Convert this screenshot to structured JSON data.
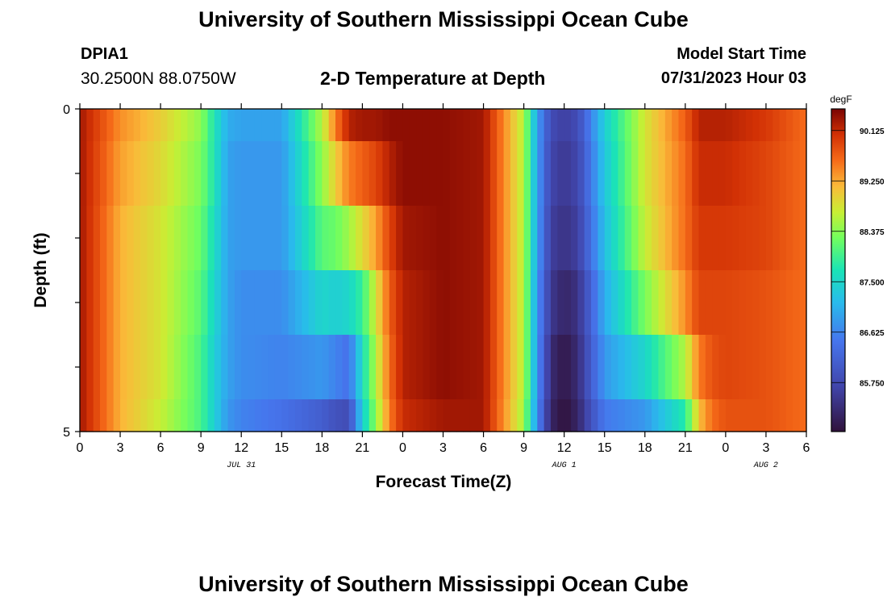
{
  "header": {
    "title": "University of Southern Mississippi Ocean Cube",
    "station_id": "DPIA1",
    "coordinates": "30.2500N  88.0750W",
    "subtitle": "2-D Temperature at Depth",
    "model_start_label": "Model Start Time",
    "model_start_value": "07/31/2023 Hour 03"
  },
  "footer": {
    "title": "University of Southern Mississippi Ocean Cube"
  },
  "chart_data": {
    "type": "heatmap",
    "title": "2-D Temperature at Depth",
    "xlabel": "Forecast Time(Z)",
    "ylabel": "Depth (ft)",
    "x_tick_labels": [
      "0",
      "3",
      "6",
      "9",
      "12",
      "15",
      "18",
      "21",
      "0",
      "3",
      "6",
      "9",
      "12",
      "15",
      "18",
      "21",
      "0",
      "3",
      "6"
    ],
    "x_hours": [
      0,
      54
    ],
    "date_labels": [
      {
        "label": "JUL 31",
        "hour": 12
      },
      {
        "label": "AUG 1",
        "hour": 36
      },
      {
        "label": "AUG 2",
        "hour": 51
      }
    ],
    "y_tick_labels": [
      "0",
      "5"
    ],
    "ylim": [
      0,
      5
    ],
    "colorbar": {
      "unit": "degF",
      "tick_labels": [
        "90.125",
        "89.250",
        "88.375",
        "87.500",
        "86.625",
        "85.750"
      ],
      "min": 84.9,
      "max": 90.5
    },
    "depth_rows": [
      0,
      0.5,
      1.5,
      2.5,
      3.5,
      4.5
    ],
    "time_hours": [
      0,
      3,
      6,
      9,
      10,
      11,
      12,
      15,
      18,
      19,
      20,
      21,
      22,
      23,
      24,
      27,
      30,
      33,
      34,
      35,
      36,
      37,
      38,
      39,
      42,
      45,
      46,
      47,
      48,
      51,
      54
    ],
    "temperatures": [
      [
        90.3,
        89.4,
        89.0,
        88.4,
        87.7,
        87.0,
        86.9,
        86.9,
        88.6,
        89.5,
        90.2,
        90.3,
        90.3,
        90.4,
        90.4,
        90.4,
        90.3,
        88.6,
        86.9,
        85.8,
        85.6,
        85.8,
        86.6,
        87.4,
        88.8,
        89.7,
        90.2,
        90.2,
        90.2,
        90.0,
        89.6
      ],
      [
        90.3,
        89.3,
        88.9,
        88.3,
        87.7,
        86.9,
        86.8,
        86.8,
        88.4,
        89.0,
        89.5,
        89.7,
        89.9,
        90.2,
        90.4,
        90.4,
        90.3,
        88.6,
        86.9,
        85.7,
        85.5,
        85.7,
        86.5,
        87.3,
        88.8,
        89.6,
        90.1,
        90.1,
        90.1,
        89.9,
        89.6
      ],
      [
        90.3,
        89.2,
        88.8,
        88.2,
        87.6,
        86.9,
        86.8,
        86.8,
        88.1,
        88.2,
        88.5,
        88.9,
        89.3,
        89.9,
        90.3,
        90.4,
        90.3,
        88.6,
        86.9,
        85.6,
        85.4,
        85.6,
        86.4,
        87.2,
        88.7,
        89.6,
        90.0,
        90.0,
        90.0,
        89.9,
        89.6
      ],
      [
        90.3,
        89.2,
        88.8,
        88.1,
        87.5,
        86.9,
        86.7,
        86.7,
        87.5,
        87.4,
        87.5,
        87.9,
        88.8,
        89.7,
        90.2,
        90.4,
        90.3,
        88.6,
        86.8,
        85.5,
        85.2,
        85.4,
        86.2,
        87.0,
        88.3,
        89.4,
        89.9,
        89.9,
        89.9,
        89.8,
        89.6
      ],
      [
        90.3,
        89.2,
        88.8,
        88.0,
        87.4,
        86.9,
        86.7,
        86.6,
        86.8,
        86.6,
        86.4,
        87.6,
        88.6,
        89.6,
        90.2,
        90.4,
        90.3,
        88.6,
        86.8,
        85.3,
        85.0,
        85.3,
        86.1,
        86.8,
        87.5,
        88.6,
        89.5,
        89.8,
        89.9,
        89.8,
        89.6
      ],
      [
        90.3,
        89.2,
        88.7,
        88.0,
        87.4,
        86.8,
        86.6,
        86.4,
        86.1,
        85.9,
        85.8,
        87.4,
        88.4,
        89.5,
        90.1,
        90.3,
        90.3,
        88.5,
        86.7,
        85.2,
        84.9,
        85.2,
        85.9,
        86.5,
        86.8,
        87.8,
        89.1,
        89.6,
        89.8,
        89.8,
        89.6
      ]
    ]
  }
}
